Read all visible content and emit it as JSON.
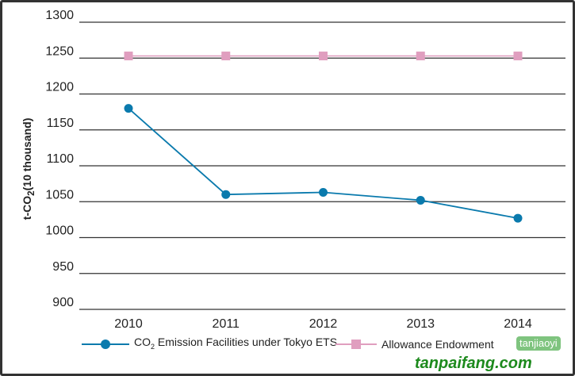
{
  "chart_data": {
    "type": "line",
    "ylabel": "t-CO2 (10 thousand)",
    "ylabel_parts": {
      "pre": "t-CO",
      "sub": "2",
      "post": "(10 thousand)"
    },
    "categories": [
      "2010",
      "2011",
      "2012",
      "2013",
      "2014"
    ],
    "ylim": [
      900,
      1300
    ],
    "yticks": [
      900,
      950,
      1000,
      1050,
      1100,
      1150,
      1200,
      1250,
      1300
    ],
    "grid": "horizontal",
    "legend_placement": "bottom",
    "series": [
      {
        "name": "CO2 Emission Facilities under Tokyo ETS",
        "legend_parts": {
          "pre": "CO",
          "sub": "2",
          "post": " Emission Facilities under Tokyo ETS"
        },
        "color": "#0a7aad",
        "marker": "circle",
        "values": [
          1180,
          1060,
          1063,
          1052,
          1027
        ]
      },
      {
        "name": "Allowance Endowment",
        "color": "#e09ebf",
        "marker": "square",
        "values": [
          1253,
          1253,
          1253,
          1253,
          1253
        ]
      }
    ]
  },
  "watermark": {
    "site": "tanpaifang.com",
    "tag": "tanjiaoyi"
  }
}
